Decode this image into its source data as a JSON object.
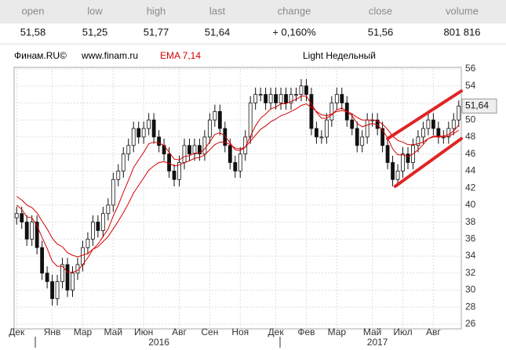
{
  "table": {
    "headers": [
      "open",
      "low",
      "high",
      "last",
      "change",
      "close",
      "volume"
    ],
    "values": [
      "51,58",
      "51,25",
      "51,77",
      "51,64",
      "+ 0,160%",
      "51,56",
      "801 816"
    ]
  },
  "chart_data": {
    "type": "candlestick",
    "source": "Финам.RU©",
    "site": "www.finam.ru",
    "indicator": "EMA 7,14",
    "period": "Light Недельный",
    "open": [
      38.5,
      39,
      38,
      36,
      38,
      35,
      32,
      31,
      29,
      31,
      33,
      30,
      32,
      33,
      35,
      36,
      38,
      37,
      39,
      40,
      43,
      44,
      46,
      47,
      49,
      48,
      49,
      50,
      48,
      47,
      46,
      44,
      43,
      45,
      47,
      46,
      47,
      46,
      48,
      50,
      51,
      49,
      47,
      45,
      44,
      46,
      48,
      52,
      53,
      53,
      52,
      53,
      52,
      53,
      52,
      53,
      53,
      54,
      53,
      49,
      48,
      48,
      50,
      52,
      53,
      52,
      50,
      49,
      47,
      48,
      50,
      50,
      49,
      47,
      45,
      43,
      44,
      46,
      45,
      47,
      48,
      49,
      50,
      49,
      48,
      48,
      49,
      50
    ],
    "high": [
      39.8,
      39.8,
      38.8,
      38.8,
      38.8,
      35.8,
      32.8,
      31.8,
      31.8,
      33.8,
      33.8,
      32.8,
      33.8,
      35.8,
      36.8,
      38.8,
      38.8,
      39.8,
      40.8,
      43.8,
      44.8,
      46.8,
      47.8,
      49.8,
      49.8,
      49.8,
      50.8,
      50.8,
      48.8,
      47.8,
      46.8,
      44.8,
      45.8,
      47.8,
      47.8,
      47.8,
      47.8,
      48.8,
      50.8,
      51.8,
      51.8,
      49.8,
      47.8,
      45.8,
      46.8,
      48.8,
      52.8,
      53.8,
      53.8,
      53.8,
      53.8,
      53.8,
      53.8,
      53.8,
      53.8,
      53.8,
      54.8,
      54.8,
      53.8,
      49.8,
      48.8,
      50.8,
      52.8,
      53.8,
      53.8,
      52.8,
      50.8,
      49.8,
      48.8,
      50.8,
      50.8,
      50.8,
      49.8,
      47.8,
      45.8,
      44.8,
      46.8,
      46.8,
      47.8,
      48.8,
      49.8,
      50.8,
      50.8,
      49.8,
      48.8,
      49.8,
      50.8,
      52.3
    ],
    "low": [
      37.7,
      37.2,
      35.2,
      35.2,
      34.2,
      31.2,
      30.2,
      28.2,
      28.2,
      30.2,
      29.2,
      29.2,
      31.2,
      32.2,
      34.2,
      35.2,
      36.2,
      36.2,
      38.2,
      39.2,
      42.2,
      43.2,
      45.2,
      46.2,
      47.2,
      47.2,
      48.2,
      47.2,
      46.2,
      45.2,
      43.2,
      42.2,
      42.2,
      44.2,
      45.2,
      45.2,
      45.2,
      45.2,
      47.2,
      49.2,
      48.2,
      46.2,
      44.2,
      43.2,
      43.2,
      45.2,
      47.2,
      51.2,
      52.2,
      51.2,
      51.2,
      51.2,
      51.2,
      51.2,
      51.2,
      52.2,
      52.2,
      52.2,
      48.2,
      47.2,
      47.2,
      47.2,
      49.2,
      51.2,
      51.2,
      49.2,
      48.2,
      46.2,
      46.2,
      47.2,
      49.2,
      48.2,
      46.2,
      44.2,
      42.2,
      42.2,
      43.2,
      44.2,
      44.2,
      46.2,
      47.2,
      48.2,
      48.2,
      47.2,
      47.2,
      47.2,
      48.2,
      49.2
    ],
    "close": [
      39,
      38,
      36,
      38,
      35,
      32,
      31,
      29,
      31,
      33,
      30,
      32,
      33,
      35,
      36,
      38,
      37,
      39,
      40,
      43,
      44,
      46,
      47,
      49,
      48,
      49,
      50,
      48,
      47,
      46,
      44,
      43,
      45,
      47,
      46,
      47,
      46,
      48,
      50,
      51,
      49,
      47,
      45,
      44,
      46,
      48,
      52,
      53,
      53,
      52,
      53,
      52,
      53,
      52,
      53,
      53,
      54,
      53,
      49,
      48,
      48,
      50,
      52,
      53,
      52,
      50,
      49,
      47,
      48,
      50,
      50,
      49,
      47,
      45,
      43,
      44,
      46,
      45,
      47,
      48,
      49,
      50,
      49,
      48,
      48,
      49,
      50,
      51.64
    ],
    "lines": [
      {
        "color": "#d40000",
        "values": [
          40,
          39.5,
          38.6,
          38.5,
          37.6,
          36.2,
          34.9,
          33.4,
          32.8,
          32.8,
          32.1,
          32.1,
          32.3,
          33,
          33.8,
          34.8,
          35.4,
          36.3,
          37.2,
          38.7,
          40,
          41.5,
          42.9,
          44.4,
          45.3,
          46.2,
          47.2,
          47.4,
          47.3,
          47,
          46.2,
          45.4,
          45.3,
          45.7,
          45.8,
          46.1,
          46.1,
          46.6,
          47.4,
          48.3,
          48.5,
          48.1,
          47.3,
          46.5,
          46.4,
          46.8,
          48.1,
          49.3,
          50.2,
          50.7,
          51.3,
          51.5,
          51.9,
          51.9,
          52.2,
          52.4,
          52.8,
          52.8,
          51.9,
          50.9,
          50.2,
          50.2,
          50.6,
          51.2,
          51.4,
          51,
          50.5,
          49.6,
          49.2,
          49.4,
          49.6,
          49.4,
          48.8,
          47.9,
          46.6,
          45.9,
          45.9,
          45.7,
          46,
          46.5,
          47.1,
          47.8,
          48.1,
          48.1,
          48.1,
          48.3,
          48.7,
          49.4
        ]
      },
      {
        "color": "#d40000",
        "values": [
          41,
          40.6,
          40,
          39.7,
          39.1,
          38.1,
          37.2,
          36.1,
          35.4,
          35.1,
          34.4,
          34.1,
          33.9,
          34.1,
          34.3,
          34.8,
          35.1,
          35.7,
          36.3,
          37.2,
          38.1,
          39.1,
          40.2,
          41.4,
          42.3,
          43.2,
          44.1,
          44.6,
          45,
          45.1,
          44.9,
          44.6,
          44.7,
          45,
          45.2,
          45.5,
          45.6,
          45.9,
          46.5,
          47.1,
          47.4,
          47.4,
          47.1,
          46.7,
          46.6,
          46.8,
          47.5,
          48.2,
          48.9,
          49.3,
          49.8,
          50.1,
          50.5,
          50.7,
          51,
          51.3,
          51.7,
          51.9,
          51.5,
          51,
          50.6,
          50.5,
          50.7,
          51,
          51.1,
          51,
          50.7,
          50.3,
          50,
          50,
          50,
          49.9,
          49.5,
          48.9,
          48.1,
          47.6,
          47.4,
          47.1,
          47.1,
          47.2,
          47.4,
          47.8,
          48,
          48,
          48,
          48.1,
          48.4,
          48.8
        ]
      }
    ],
    "channel": {
      "color": "#e02424",
      "lines": [
        {
          "x": [
            73,
            87.5
          ],
          "y": [
            47.8,
            53.4
          ]
        },
        {
          "x": [
            74.5,
            87.5
          ],
          "y": [
            42.2,
            47.8
          ]
        }
      ]
    },
    "last_price": {
      "value": 51.64,
      "label": "51,64"
    },
    "xlim": [
      -0.5,
      87.5
    ],
    "xticks": [
      {
        "value": 0,
        "label": "Дек"
      },
      {
        "value": 7,
        "label": "Янв"
      },
      {
        "value": 13,
        "label": "Мар"
      },
      {
        "value": 19,
        "label": "Май"
      },
      {
        "value": 25,
        "label": "Июн"
      },
      {
        "value": 32,
        "label": "Авг"
      },
      {
        "value": 38,
        "label": "Сен"
      },
      {
        "value": 44,
        "label": "Ноя"
      },
      {
        "value": 51,
        "label": "Дек"
      },
      {
        "value": 57,
        "label": "Фев"
      },
      {
        "value": 63,
        "label": "Мар"
      },
      {
        "value": 70,
        "label": "Май"
      },
      {
        "value": 76,
        "label": "Июл"
      },
      {
        "value": 82,
        "label": "Авг"
      }
    ],
    "year_ticks": [
      {
        "value": 28,
        "label": "2016"
      },
      {
        "value": 71,
        "label": "2017"
      }
    ],
    "ylim": [
      26,
      56
    ],
    "yticks": [
      26,
      28,
      30,
      32,
      34,
      36,
      38,
      40,
      42,
      44,
      46,
      48,
      50,
      52,
      54,
      56
    ],
    "grid": true
  }
}
